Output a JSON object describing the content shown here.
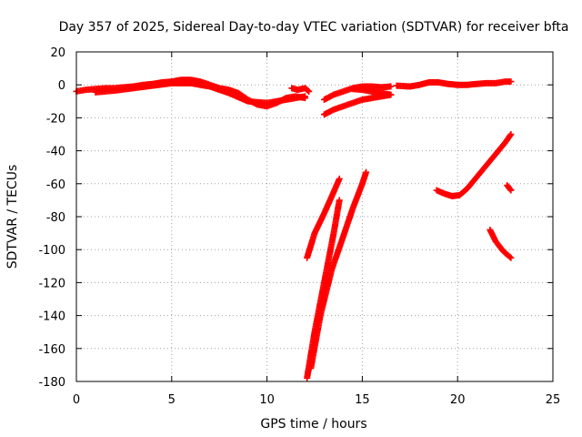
{
  "chart_data": {
    "type": "scatter",
    "title": "Day 357 of 2025, Sidereal Day-to-day VTEC variation (SDTVAR) for receiver bfta",
    "xlabel": "GPS time / hours",
    "ylabel": "SDTVAR / TECUs",
    "xlim": [
      0,
      25
    ],
    "ylim": [
      -180,
      20
    ],
    "x_ticks": [
      0,
      5,
      10,
      15,
      20,
      25
    ],
    "y_ticks": [
      20,
      0,
      -20,
      -40,
      -60,
      -80,
      -100,
      -120,
      -140,
      -160,
      -180
    ],
    "grid": true,
    "marker": "plus",
    "series_color": "#ff0000",
    "series": [
      {
        "values": [
          [
            0.0,
            -4
          ],
          [
            0.5,
            -3
          ],
          [
            1,
            -2.5
          ],
          [
            1.5,
            -2
          ],
          [
            2,
            -2
          ],
          [
            2.5,
            -1.5
          ],
          [
            3,
            -1
          ],
          [
            3.5,
            0
          ],
          [
            4,
            0.5
          ],
          [
            4.5,
            1.5
          ],
          [
            5,
            2
          ],
          [
            5.5,
            3
          ],
          [
            6,
            3
          ],
          [
            6.5,
            2
          ],
          [
            7,
            0
          ],
          [
            7.5,
            -2
          ],
          [
            8,
            -3
          ],
          [
            8.5,
            -5
          ],
          [
            9,
            -9
          ],
          [
            9.5,
            -12
          ],
          [
            10,
            -13
          ],
          [
            10.5,
            -11
          ],
          [
            11,
            -8
          ],
          [
            11.5,
            -7
          ],
          [
            12,
            -8
          ]
        ]
      },
      {
        "values": [
          [
            1.0,
            -4.5
          ],
          [
            2,
            -3.5
          ],
          [
            3,
            -2
          ],
          [
            4,
            -0.5
          ],
          [
            5,
            1
          ],
          [
            6,
            1
          ],
          [
            7,
            -1
          ],
          [
            8,
            -5
          ],
          [
            9,
            -10
          ],
          [
            10,
            -11
          ],
          [
            11,
            -9
          ],
          [
            12,
            -7
          ]
        ]
      },
      {
        "values": [
          [
            11.3,
            -2
          ],
          [
            11.6,
            -3
          ],
          [
            12,
            -2
          ],
          [
            12.2,
            -4
          ]
        ]
      },
      {
        "values": [
          [
            13,
            -9
          ],
          [
            13.5,
            -6
          ],
          [
            14,
            -4
          ],
          [
            14.5,
            -2
          ],
          [
            15,
            -1
          ],
          [
            15.5,
            -1
          ],
          [
            16,
            -1.5
          ],
          [
            16.5,
            -1
          ]
        ]
      },
      {
        "values": [
          [
            13,
            -18
          ],
          [
            13.5,
            -15
          ],
          [
            14,
            -13
          ],
          [
            14.5,
            -11
          ],
          [
            15,
            -9
          ],
          [
            15.5,
            -8
          ],
          [
            16,
            -7
          ],
          [
            16.5,
            -6
          ]
        ]
      },
      {
        "values": [
          [
            14.5,
            -2.5
          ],
          [
            15,
            -3
          ],
          [
            15.5,
            -4
          ],
          [
            16,
            -5
          ],
          [
            16.5,
            -6
          ]
        ]
      },
      {
        "values": [
          [
            16.8,
            -0.5
          ],
          [
            17.5,
            -1
          ],
          [
            18,
            0
          ],
          [
            18.5,
            1.5
          ],
          [
            19,
            1.5
          ],
          [
            19.5,
            0.5
          ],
          [
            20,
            0
          ],
          [
            20.5,
            0
          ],
          [
            21,
            0.5
          ],
          [
            21.5,
            1
          ],
          [
            22,
            1
          ],
          [
            22.5,
            2
          ],
          [
            22.8,
            2
          ]
        ]
      },
      {
        "values": [
          [
            12.1,
            -105
          ],
          [
            12.5,
            -90
          ],
          [
            13,
            -78
          ],
          [
            13.5,
            -65
          ],
          [
            13.8,
            -57
          ]
        ]
      },
      {
        "values": [
          [
            12.1,
            -178
          ],
          [
            12.5,
            -150
          ],
          [
            13,
            -120
          ],
          [
            13.5,
            -90
          ],
          [
            13.8,
            -70
          ]
        ]
      },
      {
        "values": [
          [
            12.3,
            -172
          ],
          [
            12.8,
            -140
          ],
          [
            13.4,
            -112
          ],
          [
            14,
            -92
          ],
          [
            14.5,
            -75
          ],
          [
            15,
            -60
          ],
          [
            15.2,
            -53
          ]
        ]
      },
      {
        "values": [
          [
            18.9,
            -64
          ],
          [
            19.3,
            -66
          ],
          [
            19.7,
            -67.5
          ],
          [
            20.1,
            -67
          ],
          [
            20.5,
            -63
          ],
          [
            21,
            -56
          ],
          [
            21.5,
            -49
          ],
          [
            22,
            -42
          ],
          [
            22.5,
            -35
          ],
          [
            22.8,
            -30
          ]
        ]
      },
      {
        "values": [
          [
            21.7,
            -88
          ],
          [
            22,
            -95
          ],
          [
            22.4,
            -101
          ],
          [
            22.8,
            -105
          ]
        ]
      },
      {
        "values": [
          [
            22.6,
            -61
          ],
          [
            22.8,
            -64
          ]
        ]
      }
    ]
  }
}
